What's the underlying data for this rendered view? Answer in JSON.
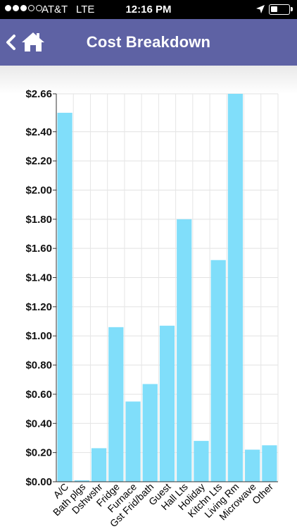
{
  "status_bar": {
    "carrier": "AT&T",
    "network": "LTE",
    "time": "12:16 PM",
    "signal_bars_filled": 3,
    "signal_bars_total": 5,
    "battery_level": 0.4
  },
  "header": {
    "title": "Cost Breakdown",
    "back_icon": "chevron-left-icon",
    "home_icon": "home-icon",
    "background": "#5e62a4"
  },
  "chart_data": {
    "type": "bar",
    "title": "",
    "xlabel": "",
    "ylabel": "",
    "categories": [
      "A/C",
      "Bath plgs",
      "Dshwshr",
      "Fridge",
      "Furnace",
      "Gst Frid/bath",
      "Guest",
      "Hall Lts",
      "Holiday",
      "Kitchn Lts",
      "Living Rm",
      "Microwave",
      "Other"
    ],
    "values": [
      2.53,
      0.01,
      0.23,
      1.06,
      0.55,
      0.67,
      1.07,
      1.8,
      0.28,
      1.52,
      2.66,
      0.22,
      0.25
    ],
    "ylim": [
      0,
      2.66
    ],
    "yticks": [
      {
        "value": 0.0,
        "label": "$0.00"
      },
      {
        "value": 0.2,
        "label": "$0.20"
      },
      {
        "value": 0.4,
        "label": "$0.40"
      },
      {
        "value": 0.6,
        "label": "$0.60"
      },
      {
        "value": 0.8,
        "label": "$0.80"
      },
      {
        "value": 1.0,
        "label": "$1.00"
      },
      {
        "value": 1.2,
        "label": "$1.20"
      },
      {
        "value": 1.4,
        "label": "$1.40"
      },
      {
        "value": 1.6,
        "label": "$1.60"
      },
      {
        "value": 1.8,
        "label": "$1.80"
      },
      {
        "value": 2.0,
        "label": "$2.00"
      },
      {
        "value": 2.2,
        "label": "$2.20"
      },
      {
        "value": 2.4,
        "label": "$2.40"
      },
      {
        "value": 2.66,
        "label": "$2.66"
      }
    ],
    "grid": true,
    "bar_color": "#80defa"
  }
}
